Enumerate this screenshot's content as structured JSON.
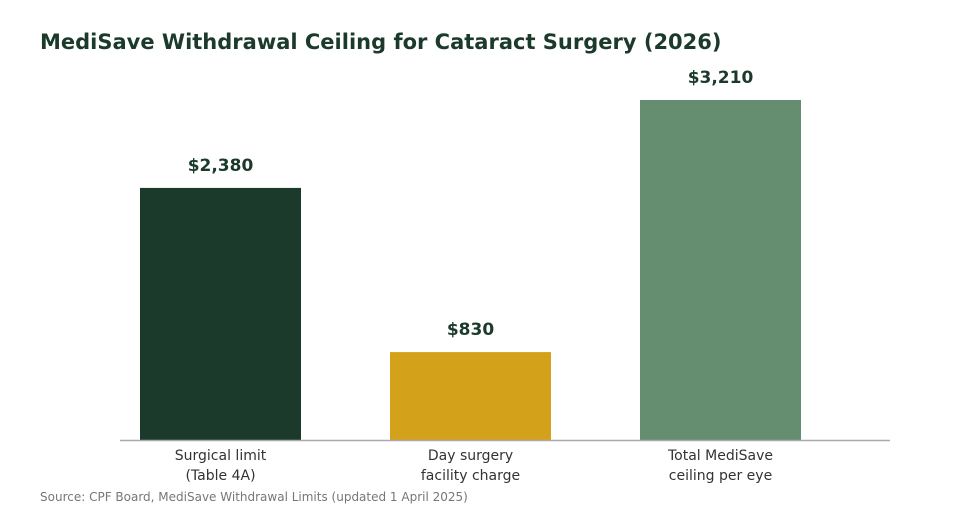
{
  "colors": {
    "title": "#1c3a2b",
    "value_label": "#1c3a2b",
    "category_label": "#333333",
    "axis_line": "#aaaaaa",
    "source": "#777777"
  },
  "chart_data": {
    "type": "bar",
    "title": "MediSave Withdrawal Ceiling for Cataract Surgery (2026)",
    "xlabel": "",
    "ylabel": "",
    "ylim": [
      0,
      3210
    ],
    "grid": false,
    "legend": "none",
    "categories": [
      [
        "Surgical limit",
        "(Table 4A)"
      ],
      [
        "Day surgery",
        "facility charge"
      ],
      [
        "Total MediSave",
        "ceiling per eye"
      ]
    ],
    "values": [
      2380,
      830,
      3210
    ],
    "value_labels": [
      "$2,380",
      "$830",
      "$3,210"
    ],
    "bar_colors": [
      "#1c3a2b",
      "#d4a11a",
      "#658e70"
    ]
  },
  "footer": {
    "source": "Source: CPF Board, MediSave Withdrawal Limits (updated 1 April 2025)"
  }
}
